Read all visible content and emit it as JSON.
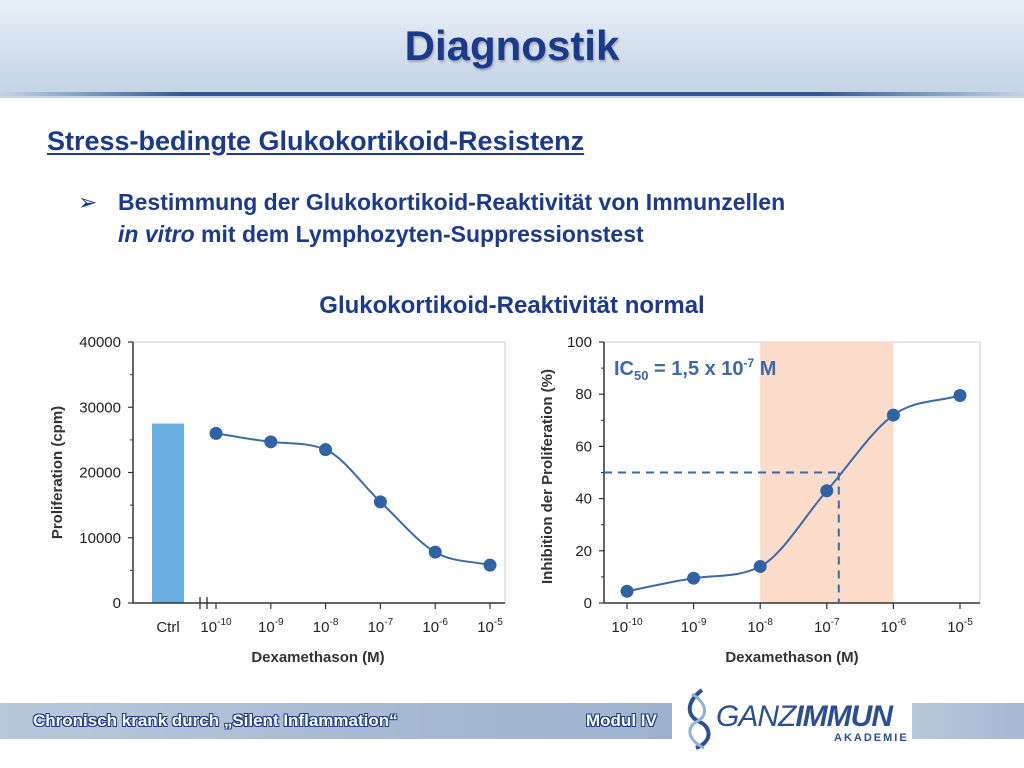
{
  "slide": {
    "title": "Diagnostik",
    "subtitle": "Stress-bedingte Glukokortikoid-Resistenz",
    "bullet_marker": "➢",
    "bullet_line1": "Bestimmung der Glukokortikoid-Reaktivität von Immunzellen",
    "bullet_line2_italic": "in vitro",
    "bullet_line2_rest": " mit dem Lymphozyten-Suppressionstest",
    "chart_heading": "Glukokortikoid-Reaktivität normal"
  },
  "footer": {
    "left_text": "Chronisch krank durch „Silent Inflammation“",
    "module": "Modul IV",
    "logo_ganz": "GANZ",
    "logo_immun": "IMMUN",
    "logo_sub": "AKADEMIE"
  },
  "colors": {
    "title_blue": "#1b3a8c",
    "line_blue": "#3a6aa8",
    "marker_blue": "#2f63a6",
    "bar_blue": "#6aaee0",
    "band_peach": "#fbdccb"
  },
  "chart_data": [
    {
      "type": "line",
      "ylabel": "Proliferation (cpm)",
      "xlabel": "Dexamethason (M)",
      "ylim": [
        0,
        40000
      ],
      "yticks": [
        0,
        10000,
        20000,
        30000,
        40000
      ],
      "control_bar": {
        "label": "Ctrl",
        "value": 27500
      },
      "x_log10": [
        -10,
        -9,
        -8,
        -7,
        -6,
        -5
      ],
      "x_tick_base": "10",
      "x_tick_exponents": [
        "-10",
        "-9",
        "-8",
        "-7",
        "-6",
        "-5"
      ],
      "y": [
        26000,
        24700,
        23500,
        15500,
        7800,
        5800
      ],
      "grid": false
    },
    {
      "type": "line",
      "ylabel": "Inhibition der Proliferation (%)",
      "xlabel": "Dexamethason (M)",
      "ylim": [
        0,
        100
      ],
      "yticks": [
        0,
        20,
        40,
        60,
        80,
        100
      ],
      "x_log10": [
        -10,
        -9,
        -8,
        -7,
        -6,
        -5
      ],
      "x_tick_base": "10",
      "x_tick_exponents": [
        "-10",
        "-9",
        "-8",
        "-7",
        "-6",
        "-5"
      ],
      "y": [
        4.5,
        9.5,
        14,
        43,
        72,
        79.5
      ],
      "highlight_band_log10": [
        -8,
        -6
      ],
      "reference_y": 50,
      "reference_x_log10": -6.82,
      "annotation_main": "IC",
      "annotation_sub": "50",
      "annotation_rest": " = 1,5 x 10",
      "annotation_exp": "-7",
      "annotation_unit": " M",
      "grid": false
    }
  ]
}
